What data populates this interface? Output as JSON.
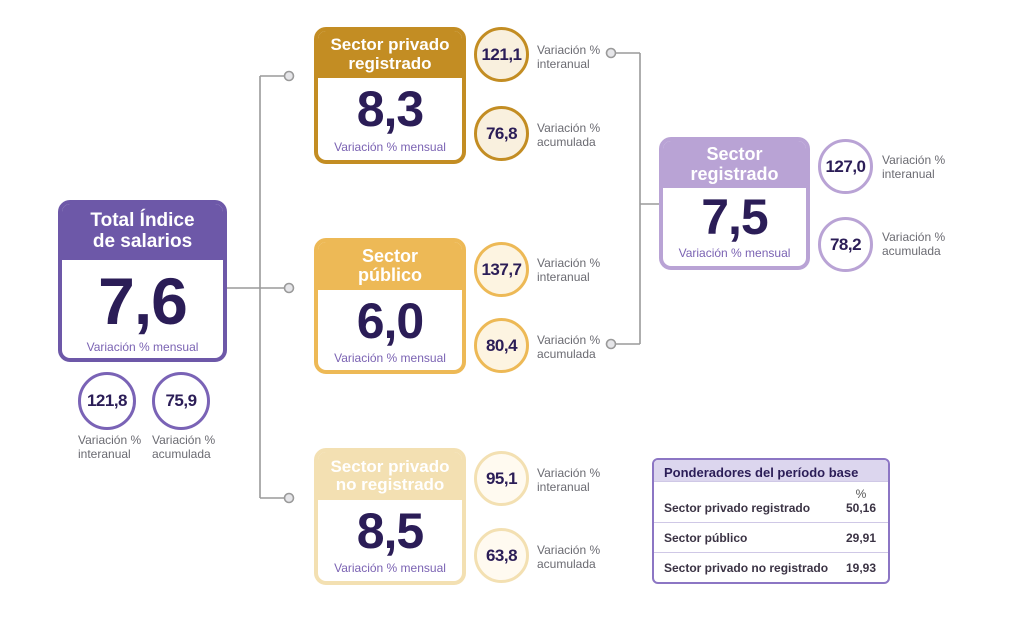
{
  "colors": {
    "total": "#6d58a8",
    "privado_registrado": "#c38d23",
    "publico": "#edb956",
    "no_registrado": "#f3e0b2",
    "sector_registrado": "#b9a3d5",
    "connector": "#9a9a9a"
  },
  "total": {
    "title_line1": "Total Índice",
    "title_line2": "de salarios",
    "value": "7,6",
    "subtitle": "Variación % mensual",
    "interanual": "121,8",
    "interanual_label_1": "Variación %",
    "interanual_label_2": "interanual",
    "acumulada": "75,9",
    "acumulada_label_1": "Variación %",
    "acumulada_label_2": "acumulada"
  },
  "sectors": [
    {
      "title_line1": "Sector privado",
      "title_line2": "registrado",
      "value": "8,3",
      "subtitle": "Variación % mensual",
      "interanual": "121,1",
      "acumulada": "76,8"
    },
    {
      "title_line1": "Sector",
      "title_line2": "público",
      "value": "6,0",
      "subtitle": "Variación % mensual",
      "interanual": "137,7",
      "acumulada": "80,4"
    },
    {
      "title_line1": "Sector privado",
      "title_line2": "no registrado",
      "value": "8,5",
      "subtitle": "Variación % mensual",
      "interanual": "95,1",
      "acumulada": "63,8"
    }
  ],
  "registrado": {
    "title_line1": "Sector",
    "title_line2": "registrado",
    "value": "7,5",
    "subtitle": "Variación % mensual",
    "interanual": "127,0",
    "acumulada": "78,2"
  },
  "labels": {
    "var_pct": "Variación %",
    "interanual": "interanual",
    "acumulada": "acumulada"
  },
  "ponderadores": {
    "title": "Ponderadores del período base",
    "unit": "%",
    "rows": [
      {
        "label": "Sector privado registrado",
        "value": "50,16"
      },
      {
        "label": "Sector público",
        "value": "29,91"
      },
      {
        "label": "Sector privado no registrado",
        "value": "19,93"
      }
    ]
  }
}
